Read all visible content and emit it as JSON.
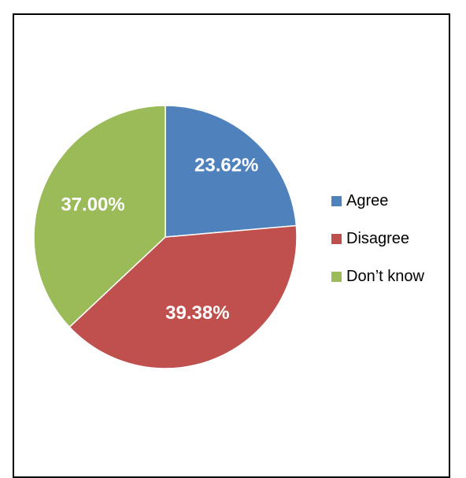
{
  "chart_data": {
    "type": "pie",
    "title": "",
    "slices": [
      {
        "label": "Agree",
        "value": 23.62,
        "display": "23.62%",
        "color": "#4F81BD"
      },
      {
        "label": "Disagree",
        "value": 39.38,
        "display": "39.38%",
        "color": "#C0504D"
      },
      {
        "label": "Don’t know",
        "value": 37.0,
        "display": "37.00%",
        "color": "#9BBB59"
      }
    ],
    "legend": {
      "placement": "right",
      "entries": [
        "Agree",
        "Disagree",
        "Don’t know"
      ]
    }
  }
}
